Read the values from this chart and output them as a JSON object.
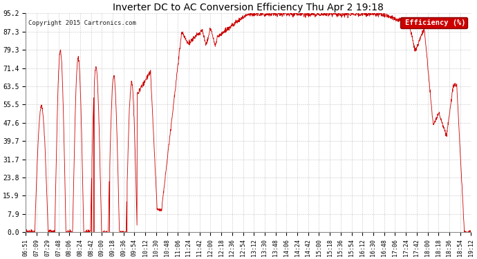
{
  "title": "Inverter DC to AC Conversion Efficiency Thu Apr 2 19:18",
  "copyright": "Copyright 2015 Cartronics.com",
  "legend_label": "Efficiency (%)",
  "legend_bg": "#cc0000",
  "legend_fg": "#ffffff",
  "line_color": "#cc0000",
  "bg_color": "#ffffff",
  "grid_color": "#aaaaaa",
  "ylim": [
    0.0,
    95.2
  ],
  "yticks": [
    0.0,
    7.9,
    15.9,
    23.8,
    31.7,
    39.7,
    47.6,
    55.5,
    63.5,
    71.4,
    79.3,
    87.3,
    95.2
  ],
  "xtick_labels": [
    "06:51",
    "07:09",
    "07:29",
    "07:48",
    "08:06",
    "08:24",
    "08:42",
    "09:00",
    "09:18",
    "09:36",
    "09:54",
    "10:12",
    "10:30",
    "10:48",
    "11:06",
    "11:24",
    "11:42",
    "12:00",
    "12:18",
    "12:36",
    "12:54",
    "13:12",
    "13:30",
    "13:48",
    "14:06",
    "14:24",
    "14:42",
    "15:00",
    "15:18",
    "15:36",
    "15:54",
    "16:12",
    "16:30",
    "16:48",
    "17:06",
    "17:24",
    "17:42",
    "18:00",
    "18:18",
    "18:36",
    "18:54",
    "19:12"
  ],
  "figsize": [
    6.9,
    3.75
  ],
  "dpi": 100
}
